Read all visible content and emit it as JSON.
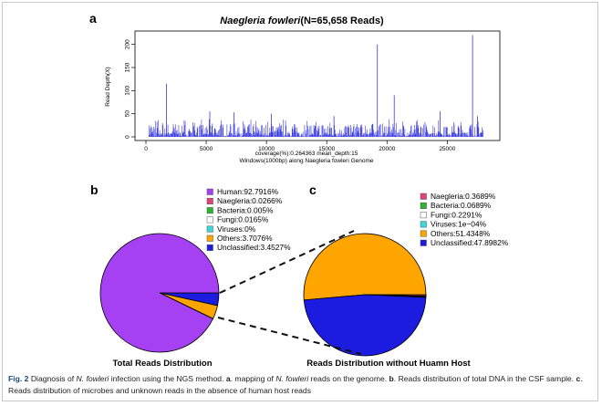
{
  "colors": {
    "bar": "#3a3ae0",
    "human": "#a541f2",
    "naegleria": "#e0427a",
    "bacteria": "#2db52d",
    "fungi": "#ffffff",
    "viruses": "#38d8d8",
    "others": "#ffa500",
    "unclassified": "#1c1ce0",
    "caption_label": "#1a4a7a"
  },
  "panels": {
    "a": "a",
    "b": "b",
    "c": "c"
  },
  "chart_data": [
    {
      "type": "bar",
      "title_italic": "Naegleria fowleri",
      "title_rest": "(N=65,658 Reads)",
      "ylabel": "Read Depth(X)",
      "xlabel_line1": "coverage(%):0.264363 mean_depth:15",
      "xlabel_line2": "Windows(1000bp) along Naegleria fowleri Genome",
      "xlim": [
        0,
        28000
      ],
      "ylim": [
        0,
        225
      ],
      "x_ticks": [
        0,
        5000,
        10000,
        15000,
        20000,
        25000
      ],
      "x_tick_labels": [
        "0",
        "5000",
        "10000",
        "15000",
        "20000",
        "25000"
      ],
      "y_ticks": [
        0,
        50,
        100,
        150,
        200
      ],
      "y_tick_labels": [
        "0",
        "50",
        "100",
        "150",
        "200"
      ],
      "n_windows": 28000,
      "typical_depth_range": [
        0,
        35
      ],
      "peaks": [
        {
          "x": 1700,
          "y": 115
        },
        {
          "x": 5300,
          "y": 55
        },
        {
          "x": 7300,
          "y": 53
        },
        {
          "x": 10400,
          "y": 50
        },
        {
          "x": 15600,
          "y": 45
        },
        {
          "x": 19200,
          "y": 200
        },
        {
          "x": 20600,
          "y": 90
        },
        {
          "x": 24400,
          "y": 55
        },
        {
          "x": 27100,
          "y": 220
        },
        {
          "x": 27500,
          "y": 45
        }
      ]
    },
    {
      "type": "pie",
      "title": "Total Reads Distribution",
      "slices": [
        {
          "label": "Human:92.7916%",
          "value": 92.7916,
          "color_key": "human"
        },
        {
          "label": "Naegleria:0.0266%",
          "value": 0.0266,
          "color_key": "naegleria"
        },
        {
          "label": "Bacteria:0.005%",
          "value": 0.005,
          "color_key": "bacteria"
        },
        {
          "label": "Fungi:0.0165%",
          "value": 0.0165,
          "color_key": "fungi"
        },
        {
          "label": "Viruses:0%",
          "value": 0,
          "color_key": "viruses"
        },
        {
          "label": "Others:3.7076%",
          "value": 3.7076,
          "color_key": "others"
        },
        {
          "label": "Unclassified:3.4527%",
          "value": 3.4527,
          "color_key": "unclassified"
        }
      ]
    },
    {
      "type": "pie",
      "title": "Reads Distribution without Huamn Host",
      "slices": [
        {
          "label": "Naegleria:0.3689%",
          "value": 0.3689,
          "color_key": "naegleria"
        },
        {
          "label": "Bacteria:0.0689%",
          "value": 0.0689,
          "color_key": "bacteria"
        },
        {
          "label": "Fungi:0.2291%",
          "value": 0.2291,
          "color_key": "fungi"
        },
        {
          "label": "Viruses:1e−04%",
          "value": 0.0001,
          "color_key": "viruses"
        },
        {
          "label": "Others:51.4348%",
          "value": 51.4348,
          "color_key": "others"
        },
        {
          "label": "Unclassified:47.8982%",
          "value": 47.8982,
          "color_key": "unclassified"
        }
      ]
    }
  ],
  "caption": {
    "fig_label": "Fig. 2",
    "t1": " Diagnosis of ",
    "t2": "N. fowleri",
    "t3": " infection using the NGS method. ",
    "a": "a",
    "t4": ". mapping of ",
    "t5": "N. fowleri",
    "t6": " reads on the genome. ",
    "b": "b",
    "t7": ". Reads distribution of total DNA in the CSF sample. ",
    "c": "c",
    "t8": ". Reads distribution of microbes and unknown reads in the absence of human host reads"
  }
}
